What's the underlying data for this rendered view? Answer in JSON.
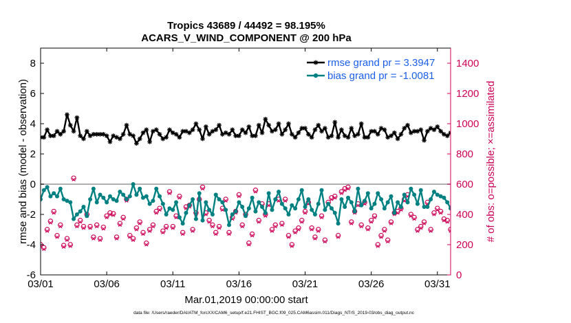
{
  "chart_data": {
    "type": "line",
    "title": "Tropics 43689 / 44492 = 98.195%",
    "subtitle": "ACARS_V_WIND_COMPONENT @ 200 hPa",
    "xlabel": "Mar.01,2019 00:00:00 start",
    "ylabel": "rmse and bias (model - observation)",
    "ylabel_right": "# of obs: o=possible; ×=assimilated",
    "footnote": "data file: /Users/raeder/DAI/ATM_forcXX/CAM6_setup/f.e21.FHIST_BGC.f09_025.CAM6assim.011/Diags_NTrS_2019-03/obs_diag_output.nc",
    "colors": {
      "rmse": "#000000",
      "bias": "#008080",
      "obs": "#cc0055",
      "legend_text": "#1a5ee8",
      "zero_line": "#b0b0b0"
    },
    "x_tick_labels": [
      "03/01",
      "03/06",
      "03/11",
      "03/16",
      "03/21",
      "03/26",
      "03/31"
    ],
    "x_tick_days": [
      1,
      6,
      11,
      16,
      21,
      26,
      31
    ],
    "xlim_days": [
      1,
      32
    ],
    "ylim": [
      -6,
      9
    ],
    "y_ticks": [
      -6,
      -4,
      -2,
      0,
      2,
      4,
      6,
      8
    ],
    "y2lim": [
      0,
      1500
    ],
    "y2_ticks": [
      0,
      200,
      400,
      600,
      800,
      1000,
      1200,
      1400
    ],
    "legend": {
      "location": "top-right",
      "entries": [
        "rmse grand pr = 3.3947",
        "bias grand pr = -1.0081"
      ]
    },
    "series": [
      {
        "name": "rmse grand pr = 3.3947",
        "axis": "left",
        "marker": "asterisk",
        "x_start_day": 1.0,
        "x_step_day": 0.25,
        "values": [
          3.1,
          3.1,
          3.6,
          3.2,
          3.2,
          3.5,
          3.3,
          3.5,
          4.6,
          3.9,
          3.5,
          4.4,
          3.2,
          3.0,
          3.5,
          3.2,
          3.3,
          3.3,
          3.3,
          3.3,
          3.2,
          2.8,
          3.2,
          3.1,
          3.0,
          3.3,
          3.9,
          3.3,
          3.2,
          2.7,
          3.0,
          3.4,
          3.6,
          2.8,
          3.5,
          3.6,
          3.3,
          3.0,
          3.1,
          3.6,
          3.4,
          3.3,
          3.1,
          3.5,
          3.5,
          3.4,
          3.6,
          4.0,
          3.6,
          3.0,
          3.8,
          3.3,
          3.5,
          3.6,
          3.9,
          3.3,
          3.4,
          3.3,
          3.6,
          3.2,
          3.2,
          3.6,
          3.4,
          3.8,
          3.2,
          3.2,
          3.9,
          3.4,
          4.3,
          3.9,
          3.5,
          3.6,
          4.0,
          3.3,
          3.6,
          4.0,
          3.3,
          3.1,
          3.4,
          3.7,
          3.7,
          3.3,
          3.1,
          3.6,
          3.9,
          3.5,
          3.7,
          3.1,
          3.2,
          4.1,
          3.1,
          3.6,
          3.2,
          3.1,
          3.7,
          3.2,
          3.3,
          4.0,
          3.1,
          3.1,
          3.5,
          3.5,
          3.3,
          3.7,
          3.6,
          3.1,
          3.2,
          3.4,
          3.0,
          3.3,
          3.7,
          3.9,
          3.4,
          3.5,
          3.5,
          3.6,
          2.9,
          3.5,
          3.7,
          3.6,
          3.8,
          3.5,
          3.3,
          3.2,
          3.4,
          3.3,
          3.5,
          3.9,
          3.7,
          3.6,
          3.4,
          3.8,
          3.5,
          3.2,
          3.7,
          3.8,
          3.6,
          3.4,
          3.2,
          3.7,
          3.5,
          3.4,
          3.3,
          3.5,
          3.4,
          3.8,
          3.3,
          3.0,
          3.6,
          3.5,
          3.3,
          3.4,
          3.5,
          3.6,
          3.7,
          3.6,
          3.4,
          3.5,
          3.6,
          3.5,
          3.9,
          3.7,
          3.8,
          4.1,
          4.0,
          3.7,
          4.2,
          4.3,
          3.9,
          4.1,
          4.0,
          3.8,
          3.9,
          3.6,
          3.8,
          3.4,
          3.5,
          3.7,
          3.9,
          3.6,
          3.7,
          4.1,
          3.9,
          3.6,
          3.8,
          3.5,
          3.3,
          3.4
        ]
      },
      {
        "name": "bias grand pr = -1.0081",
        "axis": "left",
        "marker": "dot",
        "x_start_day": 1.0,
        "x_step_day": 0.25,
        "values": [
          -1.0,
          -0.4,
          -0.2,
          -0.8,
          -0.6,
          -0.8,
          -0.3,
          -1.0,
          -1.1,
          -1.2,
          -2.3,
          -2.0,
          -1.8,
          -1.5,
          -2.1,
          -1.0,
          -0.3,
          -1.2,
          -0.7,
          -0.9,
          -1.2,
          -0.8,
          -1.0,
          -1.1,
          -0.5,
          -0.7,
          -1.0,
          -0.8,
          0.0,
          -0.7,
          -0.3,
          -0.9,
          -0.8,
          -1.3,
          -1.1,
          -0.3,
          -0.8,
          -1.3,
          -2.0,
          -1.6,
          -1.7,
          -1.2,
          -2.2,
          -2.6,
          -1.9,
          -1.4,
          -1.0,
          -2.3,
          -0.6,
          -2.4,
          -1.2,
          -1.7,
          -2.0,
          -0.7,
          -1.0,
          -1.2,
          -1.7,
          -2.7,
          -2.0,
          -1.8,
          -1.2,
          -1.5,
          -2.1,
          -1.6,
          -0.9,
          -1.8,
          -1.2,
          -1.5,
          -1.9,
          -0.6,
          -1.7,
          -1.0,
          -0.5,
          -1.3,
          -1.6,
          -2.0,
          -1.4,
          -1.6,
          -1.0,
          -0.4,
          -1.5,
          -1.0,
          -1.7,
          -2.0,
          -1.3,
          -0.4,
          -1.7,
          -1.3,
          -1.6,
          -1.9,
          -2.6,
          -1.0,
          -1.5,
          -0.9,
          -1.2,
          -1.8,
          -0.3,
          -1.4,
          -1.1,
          -0.6,
          -1.6,
          -1.3,
          -0.6,
          -1.0,
          -1.6,
          -1.2,
          -0.8,
          -1.9,
          -1.2,
          -1.5,
          -0.7,
          -1.2,
          -0.3,
          -0.7,
          -1.3,
          -0.4,
          -1.5,
          -1.5,
          -1.0,
          -0.5,
          -0.7,
          -0.8,
          -0.9,
          -1.2,
          -1.6,
          -1.2,
          -0.6,
          -0.5,
          -0.4,
          -1.0,
          -1.3,
          -0.3,
          -0.5,
          -1.1,
          -0.9,
          -1.5,
          -1.2,
          -1.8,
          -0.6,
          -0.9,
          -1.4,
          -0.4,
          -1.6,
          -1.3,
          -0.8,
          -0.7,
          -1.6,
          -1.9,
          -2.0,
          -1.0,
          -1.9,
          -1.4,
          -0.9,
          -1.8,
          -1.8,
          -1.9,
          -0.4,
          -1.1,
          -1.5,
          -1.7,
          -2.2,
          -1.3,
          -0.9,
          -1.7,
          -1.7,
          -1.1,
          -1.0,
          -1.7,
          -1.4,
          -1.2,
          -1.9,
          -1.0,
          -1.6,
          -1.0,
          -1.3,
          -1.0,
          -1.5,
          -1.2,
          -1.8,
          -1.9,
          -1.2,
          -2.0,
          -1.6,
          -1.0,
          -1.4,
          -1.6,
          -1.2,
          -1.5,
          -1.4,
          -0.8
        ]
      },
      {
        "name": "# of obs possible",
        "axis": "right",
        "marker": "circle",
        "x_start_day": 1.0,
        "x_step_day": 0.25,
        "values": [
          200,
          180,
          300,
          355,
          420,
          260,
          330,
          195,
          240,
          200,
          640,
          330,
          360,
          320,
          400,
          320,
          250,
          330,
          240,
          315,
          390,
          410,
          405,
          250,
          340,
          380,
          500,
          260,
          240,
          310,
          350,
          280,
          210,
          300,
          330,
          420,
          440,
          290,
          320,
          550,
          320,
          390,
          520,
          280,
          450,
          460,
          300,
          410,
          500,
          580,
          410,
          360,
          330,
          280,
          320,
          440,
          500,
          280,
          380,
          420,
          530,
          330,
          400,
          210,
          270,
          560,
          360,
          470,
          400,
          470,
          300,
          330,
          500,
          340,
          500,
          260,
          200,
          290,
          310,
          360,
          420,
          480,
          310,
          250,
          300,
          390,
          230,
          480,
          510,
          520,
          260,
          550,
          570,
          580,
          350,
          420,
          470,
          330,
          480,
          310,
          360,
          390,
          200,
          260,
          300,
          230,
          350,
          410,
          420,
          440,
          500,
          530,
          400,
          380,
          300,
          320,
          350,
          480,
          300,
          410,
          440,
          420,
          370,
          360,
          300,
          330,
          320,
          370,
          470,
          480,
          470,
          700,
          510,
          400,
          360,
          350,
          330,
          480,
          410,
          510,
          430,
          550,
          470,
          320,
          340,
          320,
          440,
          480,
          410,
          520,
          360,
          330,
          400,
          480,
          450,
          510,
          470,
          540,
          440,
          420,
          410,
          300,
          330,
          360,
          410,
          390,
          380,
          550,
          400,
          310,
          480,
          350,
          330,
          420,
          550,
          410,
          400,
          210,
          570,
          350,
          340,
          330,
          340,
          240,
          410,
          200,
          0
        ]
      },
      {
        "name": "# of obs assimilated",
        "axis": "right",
        "marker": "x",
        "x_start_day": 1.0,
        "x_step_day": 0.25,
        "values": [
          190,
          170,
          290,
          345,
          410,
          250,
          320,
          185,
          230,
          190,
          630,
          320,
          350,
          310,
          390,
          310,
          240,
          320,
          230,
          305,
          380,
          400,
          395,
          240,
          330,
          370,
          490,
          250,
          230,
          300,
          340,
          270,
          200,
          290,
          320,
          410,
          430,
          280,
          310,
          540,
          310,
          380,
          510,
          270,
          440,
          450,
          290,
          400,
          490,
          570,
          400,
          350,
          320,
          270,
          310,
          430,
          490,
          270,
          370,
          410,
          520,
          320,
          390,
          200,
          260,
          550,
          350,
          460,
          390,
          460,
          290,
          320,
          490,
          330,
          490,
          250,
          190,
          280,
          300,
          350,
          410,
          470,
          300,
          240,
          290,
          380,
          220,
          470,
          500,
          510,
          250,
          540,
          560,
          570,
          340,
          410,
          460,
          320,
          470,
          300,
          350,
          380,
          190,
          250,
          290,
          220,
          340,
          400,
          410,
          430,
          490,
          520,
          390,
          370,
          290,
          310,
          340,
          470,
          290,
          400,
          430,
          410,
          360,
          350,
          290,
          320,
          310,
          360,
          460,
          470,
          460,
          690,
          500,
          390,
          350,
          340,
          320,
          470,
          400,
          500,
          420,
          540,
          460,
          310,
          330,
          310,
          430,
          470,
          400,
          510,
          350,
          320,
          390,
          470,
          440,
          500,
          460,
          530,
          430,
          410,
          400,
          290,
          320,
          350,
          400,
          380,
          370,
          540,
          390,
          300,
          470,
          340,
          320,
          410,
          540,
          400,
          390,
          200,
          560,
          340,
          330,
          320,
          330,
          230,
          400,
          190,
          0
        ]
      }
    ]
  }
}
